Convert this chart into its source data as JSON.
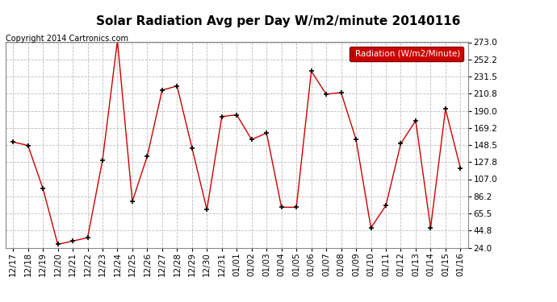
{
  "title": "Solar Radiation Avg per Day W/m2/minute 20140116",
  "copyright": "Copyright 2014 Cartronics.com",
  "legend_label": "Radiation (W/m2/Minute)",
  "background_color": "#ffffff",
  "plot_bg_color": "#ffffff",
  "line_color": "#cc0000",
  "marker_color": "#000000",
  "grid_color": "#bbbbbb",
  "x_labels": [
    "12/17",
    "12/18",
    "12/19",
    "12/20",
    "12/21",
    "12/22",
    "12/23",
    "12/24",
    "12/25",
    "12/26",
    "12/27",
    "12/28",
    "12/29",
    "12/30",
    "12/31",
    "01/01",
    "01/02",
    "01/03",
    "01/04",
    "01/05",
    "01/06",
    "01/07",
    "01/08",
    "01/09",
    "01/10",
    "01/11",
    "01/12",
    "01/13",
    "01/14",
    "01/15",
    "01/16"
  ],
  "y_values": [
    152.0,
    148.0,
    96.0,
    28.0,
    32.0,
    36.0,
    130.0,
    275.0,
    80.0,
    135.0,
    215.0,
    220.0,
    145.0,
    70.0,
    183.0,
    185.0,
    155.0,
    163.0,
    73.0,
    73.0,
    238.0,
    210.0,
    212.0,
    155.0,
    48.0,
    75.0,
    150.0,
    178.0,
    48.0,
    192.0,
    120.0
  ],
  "y_ticks": [
    24.0,
    44.8,
    65.5,
    86.2,
    107.0,
    127.8,
    148.5,
    169.2,
    190.0,
    210.8,
    231.5,
    252.2,
    273.0
  ],
  "ylim": [
    24.0,
    273.0
  ],
  "legend_bg": "#cc0000",
  "legend_text_color": "#ffffff",
  "title_fontsize": 11,
  "copyright_fontsize": 7,
  "tick_fontsize": 7.5,
  "legend_fontsize": 7.5
}
